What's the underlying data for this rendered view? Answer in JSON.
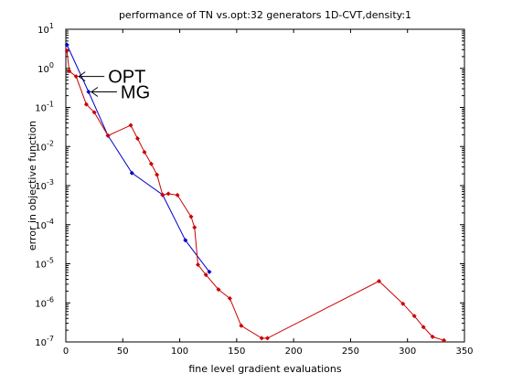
{
  "chart_data": {
    "type": "line",
    "title": "performance of TN vs.opt:32 generators 1D-CVT,density:1",
    "xlabel": "fine level gradient evaluations",
    "ylabel": "error in objective function",
    "xlim": [
      0,
      350
    ],
    "ylim": [
      1e-07,
      10
    ],
    "yscale": "log",
    "grid": false,
    "x_ticks": [
      "0",
      "50",
      "100",
      "150",
      "200",
      "250",
      "300",
      "350"
    ],
    "y_ticks": [
      {
        "base": "10",
        "exp": "1"
      },
      {
        "base": "10",
        "exp": "0"
      },
      {
        "base": "10",
        "exp": "-1"
      },
      {
        "base": "10",
        "exp": "-2"
      },
      {
        "base": "10",
        "exp": "-3"
      },
      {
        "base": "10",
        "exp": "-4"
      },
      {
        "base": "10",
        "exp": "-5"
      },
      {
        "base": "10",
        "exp": "-6"
      },
      {
        "base": "10",
        "exp": "-7"
      }
    ],
    "series": [
      {
        "color": "#0000cc",
        "x": [
          1,
          20,
          37,
          58,
          85,
          105,
          126
        ],
        "y": [
          4.0,
          0.25,
          0.019,
          0.0021,
          0.00058,
          4e-05,
          6.2e-06
        ]
      },
      {
        "color": "#cc0000",
        "x": [
          1,
          3,
          9,
          18,
          25,
          37,
          57,
          63,
          69,
          75,
          80,
          85,
          90,
          98,
          110,
          113,
          116,
          123,
          134,
          144,
          154,
          172,
          177,
          275,
          296,
          306,
          314,
          322,
          332
        ],
        "y": [
          2.8,
          0.85,
          0.62,
          0.12,
          0.075,
          0.019,
          0.035,
          0.016,
          0.0072,
          0.0036,
          0.0019,
          0.00057,
          0.00062,
          0.00057,
          0.00016,
          8.5e-05,
          9.5e-06,
          5.2e-06,
          2.2e-06,
          1.3e-06,
          2.6e-07,
          1.25e-07,
          1.25e-07,
          3.6e-06,
          9.5e-07,
          4.6e-07,
          2.4e-07,
          1.35e-07,
          1.1e-07
        ]
      }
    ],
    "annotations": [
      {
        "text": "OPT",
        "arrow_to": {
          "x": 9,
          "y": 0.62
        }
      },
      {
        "text": "MG",
        "arrow_to": {
          "x": 20,
          "y": 0.25
        }
      }
    ]
  }
}
